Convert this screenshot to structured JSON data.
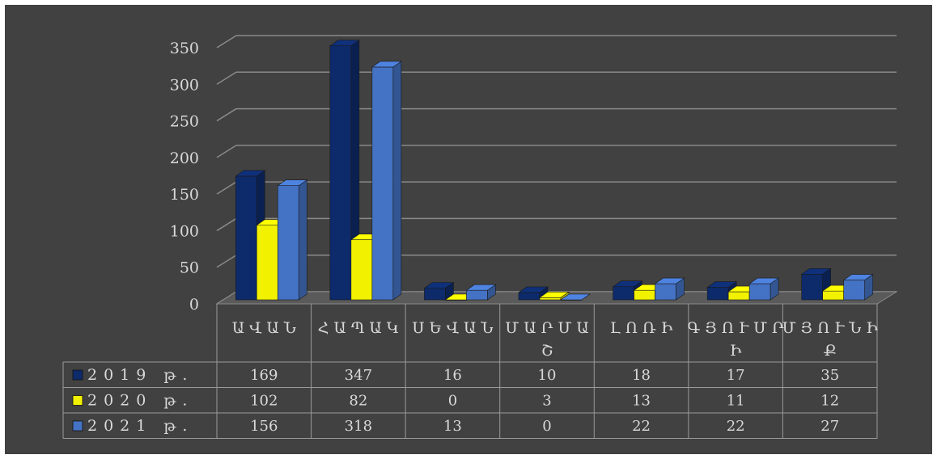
{
  "chart_data": {
    "type": "bar",
    "categories": [
      "ԱՎԱՆ",
      "ՀԱՊԱԿ",
      "ՍԵՎԱՆ",
      "ՄԱՐՄԱՇ",
      "ԼՈՌԻ",
      "ԳՅՈՒՄՐԻ",
      "ՄՅՈՒՆԻՔ"
    ],
    "series": [
      {
        "name": "2019 թ.",
        "values": [
          169,
          347,
          16,
          10,
          18,
          17,
          35
        ],
        "color": "#0d2a6b"
      },
      {
        "name": "2020 թ.",
        "values": [
          102,
          82,
          0,
          3,
          13,
          11,
          12
        ],
        "color": "#f2f200"
      },
      {
        "name": "2021 թ.",
        "values": [
          156,
          318,
          13,
          0,
          22,
          22,
          27
        ],
        "color": "#4472c4"
      }
    ],
    "ylim": [
      0,
      350
    ],
    "yticks": [
      0,
      50,
      100,
      150,
      200,
      250,
      300,
      350
    ],
    "grid": true,
    "legend": "table-left",
    "data_table": true
  },
  "colors": {
    "background": "#414141",
    "grid": "#8a8a8a",
    "text": "#d9d9d9"
  }
}
